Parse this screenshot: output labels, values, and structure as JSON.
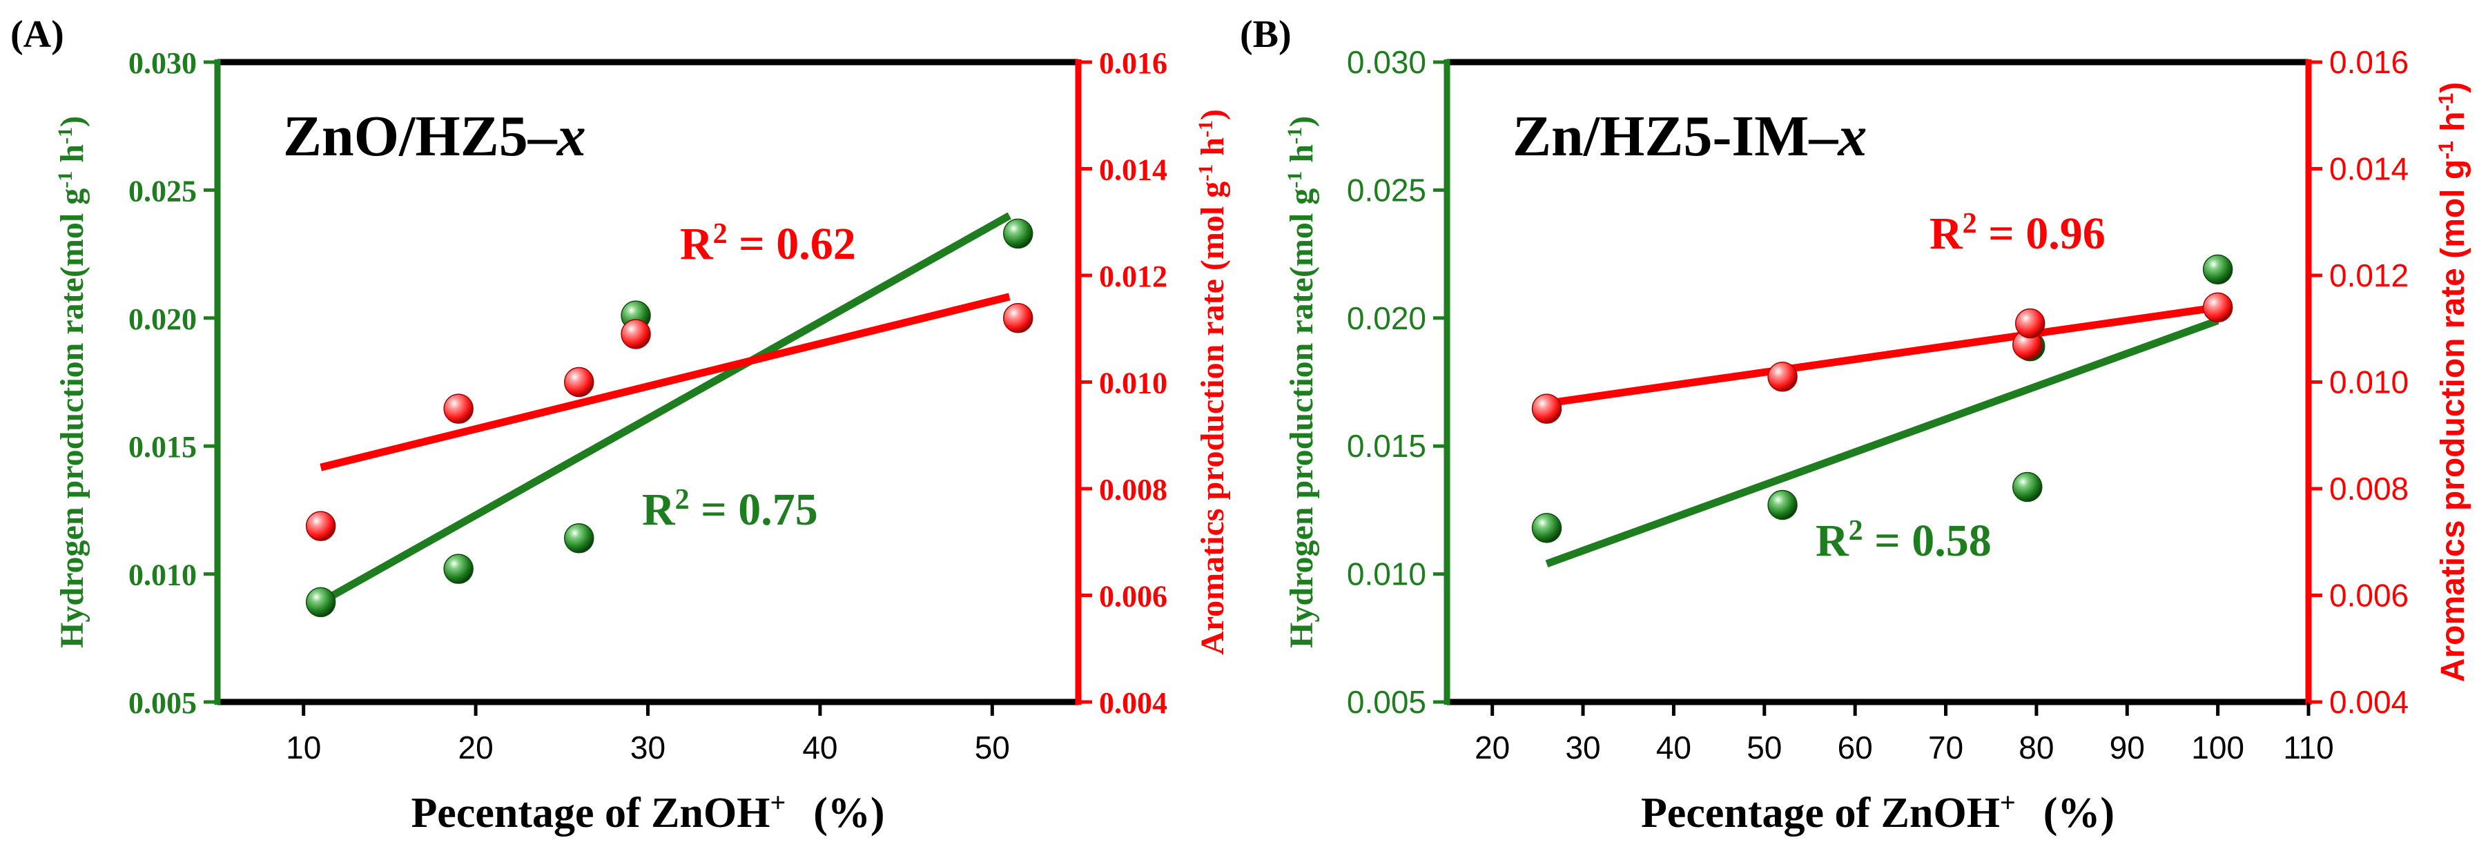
{
  "colors": {
    "green": "#1e7d1e",
    "red": "#ff0000",
    "black": "#000000",
    "green_ball": "#1f7a1f",
    "red_ball": "#ff1a1a"
  },
  "chart_data": [
    {
      "type": "scatter",
      "panel_label": "(A)",
      "title": "ZnO/HZ5–",
      "title_italic": "x",
      "xlabel": "Pecentage of ZnOH",
      "xlabel_sup": "+",
      "xlabel_unit": "(%)",
      "ylabel_left": "Hydrogen production rate(mol g",
      "ylabel_right": "Aromatics production rate (mol g",
      "ylabel_sup1": "-1",
      "ylabel_mid": " h",
      "ylabel_sup2": "-1",
      "ylabel_end": ")",
      "xlim": [
        5,
        55
      ],
      "xticks": [
        10,
        20,
        30,
        40,
        50
      ],
      "xtick_labels": [
        "10",
        "20",
        "30",
        "40",
        "50"
      ],
      "ylim_left": [
        0.005,
        0.03
      ],
      "yticks_left": [
        0.005,
        0.01,
        0.015,
        0.02,
        0.025,
        0.03
      ],
      "ytick_labels_left": [
        "0.005",
        "0.010",
        "0.015",
        "0.020",
        "0.025",
        "0.030"
      ],
      "ylim_right": [
        0.004,
        0.016
      ],
      "yticks_right": [
        0.004,
        0.006,
        0.008,
        0.01,
        0.012,
        0.014,
        0.016
      ],
      "ytick_labels_right": [
        "0.004",
        "0.006",
        "0.008",
        "0.010",
        "0.012",
        "0.014",
        "0.016"
      ],
      "series": [
        {
          "name": "Hydrogen",
          "axis": "left",
          "x": [
            11,
            19,
            26,
            29.3,
            51.5
          ],
          "values": [
            0.0089,
            0.0102,
            0.0114,
            0.0201,
            0.0233
          ],
          "fit": {
            "x": [
              11,
              51
            ],
            "y": [
              0.0089,
              0.024
            ]
          },
          "r2_label": "R",
          "r2_sup": "2",
          "r2_value": " = 0.75"
        },
        {
          "name": "Aromatics",
          "axis": "right",
          "x": [
            11,
            19,
            26,
            29.3,
            51.5
          ],
          "values": [
            0.0073,
            0.0095,
            0.01,
            0.0109,
            0.0112
          ],
          "fit": {
            "x": [
              11,
              51
            ],
            "y": [
              0.0084,
              0.0116
            ]
          },
          "r2_label": "R",
          "r2_sup": "2",
          "r2_value": " = 0.62"
        }
      ]
    },
    {
      "type": "scatter",
      "panel_label": "(B)",
      "title": "Zn/HZ5-IM–",
      "title_italic": "x",
      "xlabel": "Pecentage of ZnOH",
      "xlabel_sup": "+",
      "xlabel_unit": "(%)",
      "ylabel_left": "Hydrogen production rate(mol g",
      "ylabel_right": "Aromatics production rate (mol g",
      "ylabel_sup1": "-1",
      "ylabel_mid": " h",
      "ylabel_sup2": "-1",
      "ylabel_end": ")",
      "xlim": [
        15,
        110
      ],
      "xticks": [
        20,
        30,
        40,
        50,
        60,
        70,
        80,
        90,
        100,
        110
      ],
      "xtick_labels": [
        "20",
        "30",
        "40",
        "50",
        "60",
        "70",
        "80",
        "90",
        "100",
        "110"
      ],
      "ylim_left": [
        0.005,
        0.03
      ],
      "yticks_left": [
        0.005,
        0.01,
        0.015,
        0.02,
        0.025,
        0.03
      ],
      "ytick_labels_left": [
        "0.005",
        "0.010",
        "0.015",
        "0.020",
        "0.025",
        "0.030"
      ],
      "ylim_right": [
        0.004,
        0.016
      ],
      "yticks_right": [
        0.004,
        0.006,
        0.008,
        0.01,
        0.012,
        0.014,
        0.016
      ],
      "ytick_labels_right": [
        "0.004",
        "0.006",
        "0.008",
        "0.010",
        "0.012",
        "0.014",
        "0.016"
      ],
      "series": [
        {
          "name": "Hydrogen",
          "axis": "left",
          "x": [
            26,
            52,
            79,
            79.3,
            100
          ],
          "values": [
            0.0118,
            0.0127,
            0.0134,
            0.0189,
            0.0219
          ],
          "fit": {
            "x": [
              26,
              100
            ],
            "y": [
              0.0104,
              0.0199
            ]
          },
          "r2_label": "R",
          "r2_sup": "2",
          "r2_value": " = 0.58"
        },
        {
          "name": "Aromatics",
          "axis": "right",
          "x": [
            26,
            52,
            79,
            79.3,
            100
          ],
          "values": [
            0.0095,
            0.0101,
            0.0107,
            0.0111,
            0.0114
          ],
          "fit": {
            "x": [
              26,
              100
            ],
            "y": [
              0.0096,
              0.0114
            ]
          },
          "r2_label": "R",
          "r2_sup": "2",
          "r2_value": " = 0.96"
        }
      ]
    }
  ]
}
